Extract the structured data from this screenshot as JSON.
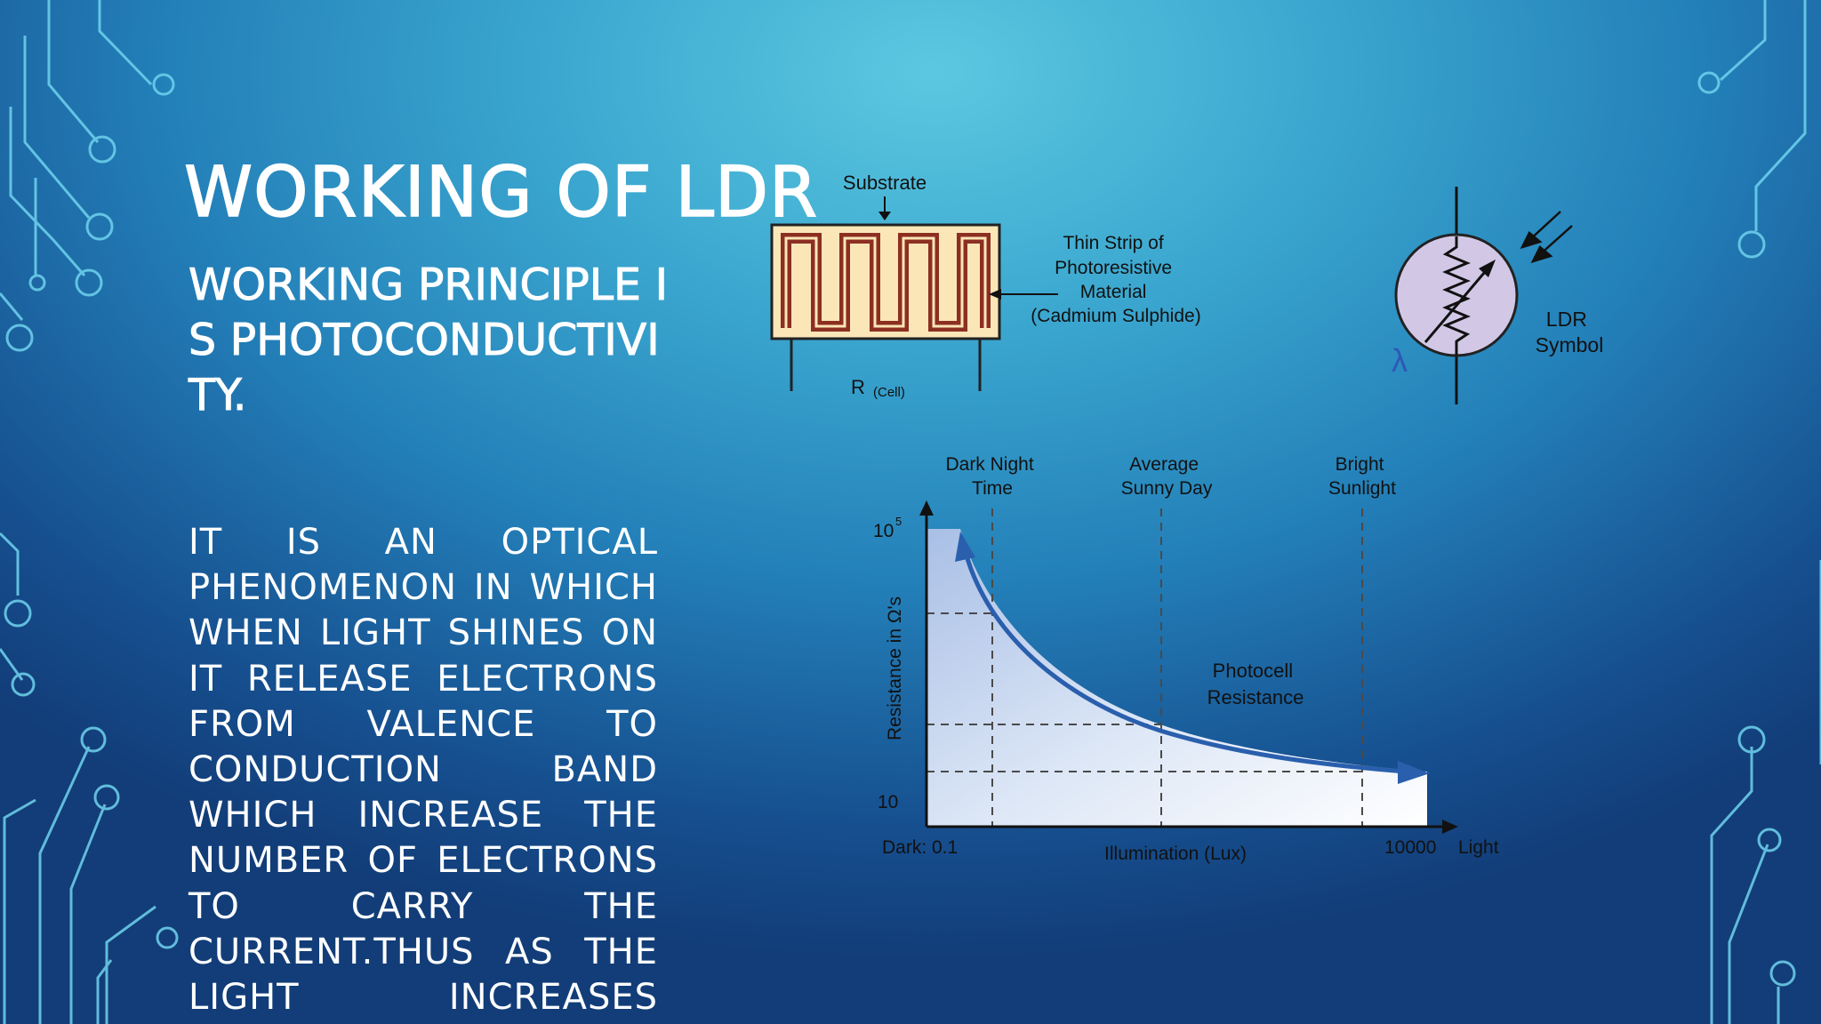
{
  "slide": {
    "title": "WORKING OF LDR",
    "subtitle": "WORKING PRINCIPLE IS PHOTOCONDUCTIVITY.",
    "body_lines": [
      "IT IS AN OPTICAL",
      "PHENOMENON IN WHICH",
      "WHEN LIGHT SHINES ON",
      "IT RELEASE ELECTRONS",
      "FROM VALENCE TO",
      "CONDUCTION BAND",
      "WHICH INCREASE THE",
      "NUMBER OF ELECTRONS",
      "TO CARRY THE",
      "CURRENT.THUS AS THE",
      "LIGHT INCREASES"
    ]
  },
  "ldr_cell": {
    "substrate_label": "Substrate",
    "strip_label_lines": [
      "Thin Strip of",
      "Photoresistive",
      "Material",
      "(Cadmium Sulphide)"
    ],
    "resistance_label": "R",
    "resistance_subscript": "(Cell)"
  },
  "ldr_symbol": {
    "lambda_label": "λ",
    "label_lines": [
      "LDR",
      "Symbol"
    ]
  },
  "graph": {
    "region_labels": [
      {
        "id": "dark",
        "lines": [
          "Dark Night",
          "Time"
        ]
      },
      {
        "id": "average",
        "lines": [
          "Average",
          "Sunny Day"
        ]
      },
      {
        "id": "bright",
        "lines": [
          "Bright",
          "Sunlight"
        ]
      }
    ],
    "y_axis_label": "Resistance in Ω's",
    "y_max_label": "10",
    "y_max_exp": "5",
    "y_min_label": "10",
    "x_left_label": "Dark:  0.1",
    "x_axis_label": "Illumination (Lux)",
    "x_max_label": "10000",
    "x_right_label": "Light",
    "curve_label_lines": [
      "Photocell",
      "Resistance"
    ]
  },
  "colors": {
    "background_center": "#5cc8e0",
    "background_edge": "#123d78",
    "circuit_lines": "#6fd3ee",
    "cell_fill": "#fbe6b8",
    "cell_track": "#8c2f22",
    "symbol_fill": "#d2c8e6",
    "curve": "#2a5fad"
  }
}
